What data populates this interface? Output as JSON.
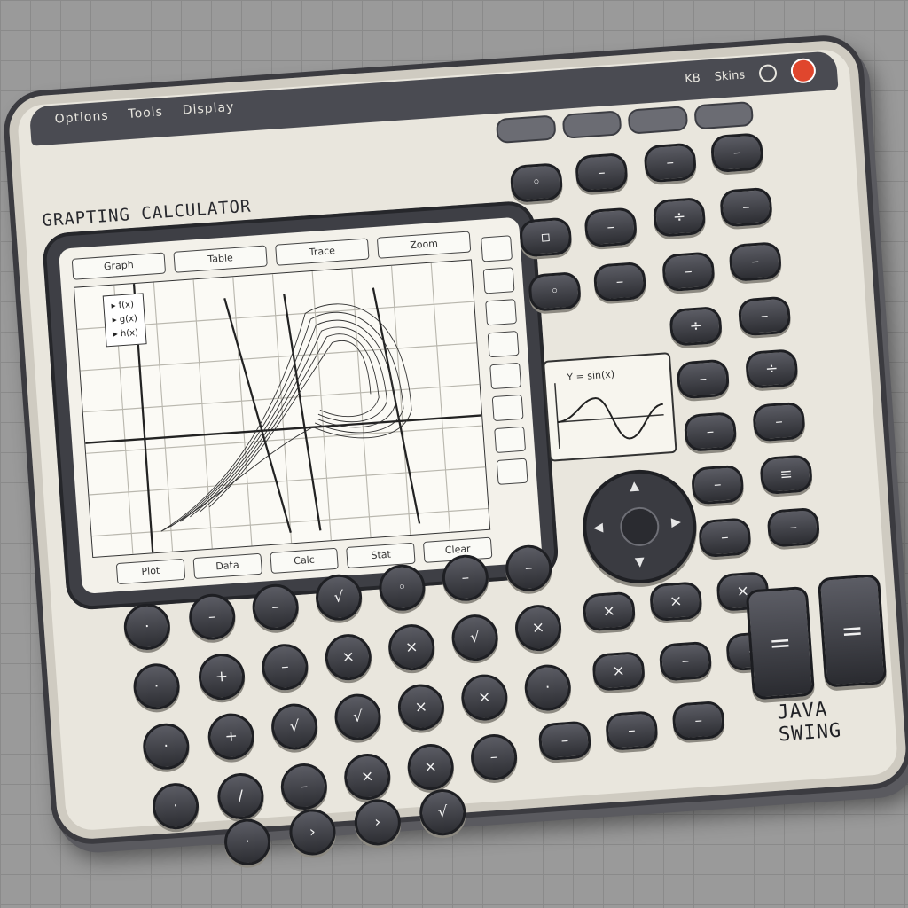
{
  "window": {
    "menu": [
      "Options",
      "Tools",
      "Display"
    ],
    "right_labels": [
      "KB",
      "Skins"
    ]
  },
  "app": {
    "title": "GRAPTING CALCULATOR",
    "brand": "JAVA SWING"
  },
  "screen": {
    "toolbar": [
      "Graph",
      "Table",
      "Trace",
      "Zoom"
    ],
    "legend": [
      "f(x)",
      "g(x)",
      "h(x)"
    ],
    "bottom": [
      "Plot",
      "Data",
      "Calc",
      "Stat",
      "Clear"
    ]
  },
  "minigraph": {
    "label": "Y = sin(x)"
  },
  "keys": {
    "equals_1": "=",
    "equals_2": "="
  },
  "colors": {
    "body": "#e9e6dd",
    "frame": "#3b3b40",
    "key": "#2d2e33",
    "power": "#e0462d"
  }
}
